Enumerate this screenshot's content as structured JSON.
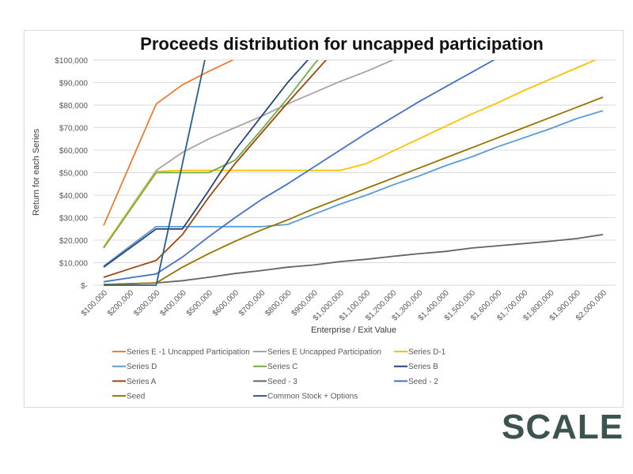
{
  "logo": "SCALE",
  "chart_data": {
    "type": "line",
    "title": "Proceeds distribution for uncapped participation",
    "xlabel": "Enterprise / Exit Value",
    "ylabel": "Return for each Series",
    "ylim": [
      0,
      100000
    ],
    "grid": true,
    "legend_position": "bottom",
    "y_ticks": [
      0,
      10000,
      20000,
      30000,
      40000,
      50000,
      60000,
      70000,
      80000,
      90000,
      100000
    ],
    "y_tick_labels": [
      "$-",
      "$10,000",
      "$20,000",
      "$30,000",
      "$40,000",
      "$50,000",
      "$60,000",
      "$70,000",
      "$80,000",
      "$90,000",
      "$100,000"
    ],
    "categories": [
      "$100,000",
      "$200,000",
      "$300,000",
      "$400,000",
      "$500,000",
      "$600,000",
      "$700,000",
      "$800,000",
      "$900,000",
      "$1,000,000",
      "$1,100,000",
      "$1,200,000",
      "$1,300,000",
      "$1,400,000",
      "$1,500,000",
      "$1,600,000",
      "$1,700,000",
      "$1,800,000",
      "$1,900,000",
      "$2,000,000"
    ],
    "series": [
      {
        "name": "Series E -1 Uncapped Participation",
        "color": "#ED7D31",
        "values": [
          26500,
          53500,
          80500,
          89000,
          95000,
          100500,
          null,
          null,
          null,
          null,
          null,
          null,
          null,
          null,
          null,
          null,
          null,
          null,
          null,
          null
        ]
      },
      {
        "name": "Series E Uncapped Participation",
        "color": "#A5A5A5",
        "values": [
          17000,
          34000,
          51000,
          59000,
          65000,
          70000,
          75000,
          80500,
          85500,
          90500,
          95000,
          100000,
          null,
          null,
          null,
          null,
          null,
          null,
          null,
          null
        ]
      },
      {
        "name": "Series D-1",
        "color": "#FFC000",
        "values": [
          17000,
          33800,
          50500,
          51000,
          51000,
          51000,
          51000,
          51000,
          51000,
          51000,
          54000,
          59500,
          65000,
          70500,
          76000,
          81000,
          86500,
          91500,
          96500,
          101500
        ]
      },
      {
        "name": "Series D",
        "color": "#5B9BD5",
        "values": [
          8500,
          17300,
          26000,
          26000,
          26000,
          26000,
          26000,
          27000,
          31500,
          36000,
          40000,
          44500,
          48500,
          53000,
          57000,
          61500,
          65500,
          69500,
          74000,
          77500
        ]
      },
      {
        "name": "Series C",
        "color": "#70AD47",
        "values": [
          16500,
          33300,
          50000,
          50000,
          50000,
          55500,
          69000,
          83000,
          98000,
          112000,
          null,
          null,
          null,
          null,
          null,
          null,
          null,
          null,
          null,
          null
        ]
      },
      {
        "name": "Series B",
        "color": "#264478",
        "values": [
          8000,
          16500,
          25000,
          25000,
          42000,
          60000,
          75000,
          90000,
          103000,
          null,
          null,
          null,
          null,
          null,
          null,
          null,
          null,
          null,
          null,
          null
        ]
      },
      {
        "name": "Series A",
        "color": "#9E480E",
        "values": [
          3500,
          7300,
          11000,
          22500,
          39000,
          54000,
          67500,
          81000,
          94000,
          107000,
          null,
          null,
          null,
          null,
          null,
          null,
          null,
          null,
          null,
          null
        ]
      },
      {
        "name": "Seed - 3",
        "color": "#636363",
        "values": [
          300,
          650,
          1000,
          2000,
          3500,
          5200,
          6500,
          8000,
          9000,
          10500,
          11500,
          12800,
          14000,
          15000,
          16500,
          17500,
          18500,
          19500,
          20700,
          22500
        ]
      },
      {
        "name": "Seed - 2",
        "color": "#4472C4",
        "values": [
          1500,
          3300,
          5000,
          12500,
          21500,
          30000,
          38000,
          45000,
          52500,
          60000,
          67500,
          74500,
          81500,
          88000,
          94500,
          101000,
          null,
          null,
          null,
          null
        ]
      },
      {
        "name": "Seed",
        "color": "#997300",
        "values": [
          300,
          650,
          1000,
          8000,
          14000,
          19500,
          24500,
          29000,
          34000,
          38500,
          43000,
          47500,
          52000,
          56500,
          61000,
          65500,
          70000,
          74500,
          79000,
          83500
        ]
      },
      {
        "name": "Common Stock + Options",
        "color": "#255E91",
        "values": [
          0,
          0,
          0,
          54000,
          108000,
          null,
          null,
          null,
          null,
          null,
          null,
          null,
          null,
          null,
          null,
          null,
          null,
          null,
          null,
          null
        ]
      }
    ]
  }
}
